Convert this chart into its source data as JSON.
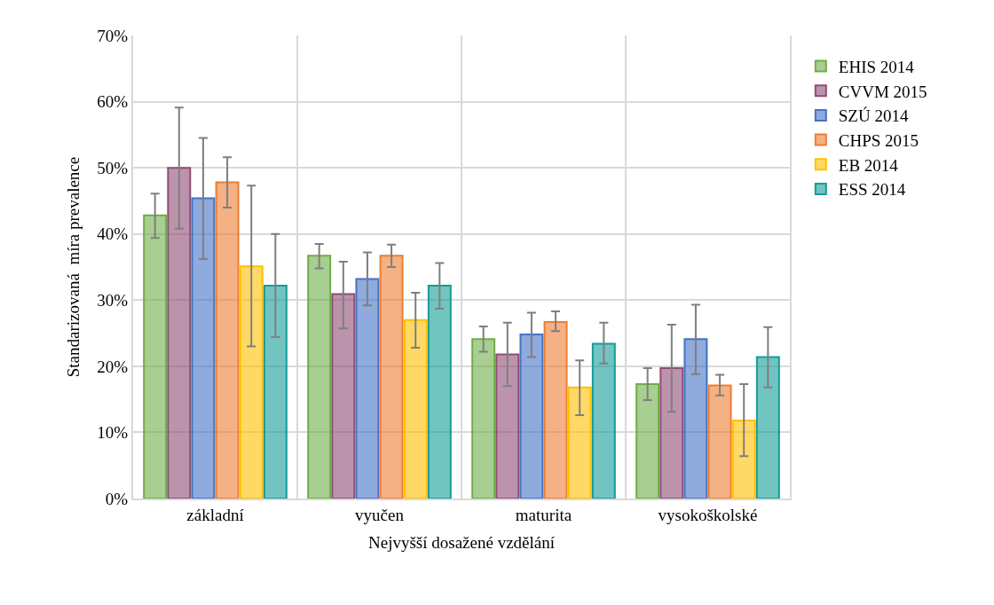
{
  "chart_data": {
    "type": "bar",
    "xlabel": "Nejvyšší dosažené vzdělání",
    "ylabel": "Standarizovaná  míra prevalence",
    "categories": [
      "základní",
      "vyučen",
      "maturita",
      "vysokoškolské"
    ],
    "series": [
      {
        "name": "EHIS 2014",
        "color": "#70ad47",
        "values": [
          42.8,
          36.7,
          24.1,
          17.3
        ],
        "errors": [
          [
            39.4,
            46.1
          ],
          [
            34.8,
            38.5
          ],
          [
            22.2,
            26.0
          ],
          [
            14.9,
            19.7
          ]
        ]
      },
      {
        "name": "CVVM 2015",
        "color": "#8e4d74",
        "values": [
          50.0,
          30.9,
          21.8,
          19.7
        ],
        "errors": [
          [
            40.8,
            59.1
          ],
          [
            25.7,
            35.8
          ],
          [
            17.0,
            26.6
          ],
          [
            13.1,
            26.3
          ]
        ]
      },
      {
        "name": "SZÚ 2014",
        "color": "#4472c4",
        "values": [
          45.4,
          33.2,
          24.8,
          24.1
        ],
        "errors": [
          [
            36.2,
            54.5
          ],
          [
            29.2,
            37.2
          ],
          [
            21.4,
            28.1
          ],
          [
            18.8,
            29.3
          ]
        ]
      },
      {
        "name": "CHPS 2015",
        "color": "#ed7d31",
        "values": [
          47.8,
          36.7,
          26.7,
          17.1
        ],
        "errors": [
          [
            44.0,
            51.6
          ],
          [
            35.0,
            38.4
          ],
          [
            25.3,
            28.3
          ],
          [
            15.6,
            18.7
          ]
        ]
      },
      {
        "name": "EB 2014",
        "color": "#ffc000",
        "values": [
          35.1,
          27.0,
          16.8,
          11.8
        ],
        "errors": [
          [
            23.0,
            47.3
          ],
          [
            22.8,
            31.1
          ],
          [
            12.6,
            20.9
          ],
          [
            6.4,
            17.3
          ]
        ]
      },
      {
        "name": "ESS 2014",
        "color": "#149c98",
        "values": [
          32.2,
          32.2,
          23.4,
          21.4
        ],
        "errors": [
          [
            24.4,
            40.0
          ],
          [
            28.7,
            35.6
          ],
          [
            20.4,
            26.6
          ],
          [
            16.8,
            25.9
          ]
        ]
      }
    ],
    "ylim": [
      0,
      70
    ],
    "yticks": [
      {
        "value": 0,
        "label": "0%"
      },
      {
        "value": 10,
        "label": "10%"
      },
      {
        "value": 20,
        "label": "20%"
      },
      {
        "value": 30,
        "label": "30%"
      },
      {
        "value": 40,
        "label": "40%"
      },
      {
        "value": 50,
        "label": "50%"
      },
      {
        "value": 60,
        "label": "60%"
      },
      {
        "value": 70,
        "label": "70%"
      }
    ],
    "grid": true,
    "legend": "right"
  }
}
